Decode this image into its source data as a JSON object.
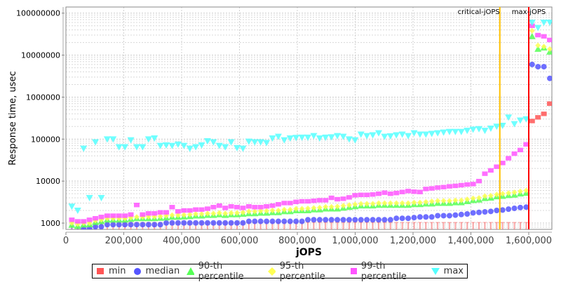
{
  "chart_data": {
    "type": "scatter",
    "title": "",
    "xlabel": "jOPS",
    "ylabel": "Response time, usec",
    "xlim": [
      0,
      1680000
    ],
    "ylim": [
      708,
      140000000
    ],
    "yscale": "log",
    "grid": true,
    "legend_position": "bottom",
    "xticks": [
      "0",
      "200,000",
      "400,000",
      "600,000",
      "800,000",
      "1,000,000",
      "1,200,000",
      "1,400,000",
      "1,600,000"
    ],
    "xtick_values": [
      0,
      200000,
      400000,
      600000,
      800000,
      1000000,
      1200000,
      1400000,
      1600000
    ],
    "yticks": [
      "1000",
      "10000",
      "100000",
      "1000000",
      "10000000",
      "100000000"
    ],
    "ytick_values": [
      1000,
      10000,
      100000,
      1000000,
      10000000,
      100000000
    ],
    "markers": [
      {
        "label": "critical-jOPS",
        "x": 1500000,
        "color": "#ffc000"
      },
      {
        "label": "max-jOPS",
        "x": 1600000,
        "color": "#ff0000"
      }
    ],
    "x": [
      20400,
      40800,
      61200,
      81600,
      102000,
      122400,
      142800,
      163200,
      183600,
      204000,
      224400,
      244800,
      265200,
      285600,
      306000,
      326400,
      346800,
      367200,
      387600,
      408000,
      428400,
      448800,
      469200,
      489600,
      510000,
      530400,
      550800,
      571200,
      591600,
      612000,
      632400,
      652800,
      673200,
      693600,
      714000,
      734400,
      754800,
      775200,
      795600,
      816000,
      836400,
      856800,
      877200,
      897600,
      918000,
      938400,
      958800,
      979200,
      999600,
      1020000,
      1040400,
      1060800,
      1081200,
      1101600,
      1122000,
      1142400,
      1162800,
      1183200,
      1203600,
      1224000,
      1244400,
      1264800,
      1285200,
      1305600,
      1326000,
      1346400,
      1366800,
      1387200,
      1407600,
      1428000,
      1448400,
      1468800,
      1489200,
      1509600,
      1530000,
      1550400,
      1570800,
      1591200,
      1611600,
      1632000,
      1652400,
      1672800
    ],
    "series": [
      {
        "name": "min",
        "color": "#ff5555",
        "marker": "square",
        "values": [
          500,
          500,
          500,
          500,
          500,
          500,
          500,
          500,
          500,
          500,
          500,
          500,
          500,
          500,
          500,
          500,
          500,
          500,
          500,
          500,
          500,
          500,
          500,
          500,
          500,
          500,
          500,
          500,
          500,
          500,
          500,
          500,
          500,
          500,
          500,
          500,
          500,
          500,
          500,
          500,
          500,
          500,
          500,
          500,
          500,
          500,
          500,
          500,
          500,
          500,
          500,
          500,
          500,
          500,
          500,
          500,
          500,
          500,
          500,
          500,
          500,
          500,
          500,
          500,
          500,
          500,
          500,
          500,
          500,
          500,
          500,
          500,
          500,
          500,
          500,
          500,
          500,
          500,
          270000,
          330000,
          400000,
          700000
        ]
      },
      {
        "name": "median",
        "color": "#5555ff",
        "marker": "circle",
        "values": [
          650,
          680,
          730,
          740,
          820,
          820,
          920,
          920,
          920,
          920,
          920,
          920,
          920,
          920,
          920,
          920,
          1010,
          1010,
          1010,
          1010,
          1010,
          1010,
          1010,
          1010,
          1010,
          1010,
          1010,
          1010,
          1010,
          1010,
          1100,
          1100,
          1100,
          1100,
          1100,
          1100,
          1100,
          1100,
          1100,
          1100,
          1200,
          1200,
          1200,
          1200,
          1200,
          1200,
          1200,
          1200,
          1200,
          1200,
          1200,
          1200,
          1200,
          1200,
          1200,
          1300,
          1300,
          1300,
          1350,
          1400,
          1400,
          1400,
          1500,
          1500,
          1500,
          1550,
          1600,
          1650,
          1750,
          1800,
          1850,
          1900,
          2000,
          2050,
          2150,
          2250,
          2350,
          2400,
          6000000,
          5300000,
          5300000,
          2800000
        ]
      },
      {
        "name": "90-th percentile",
        "color": "#55ff55",
        "marker": "triangle",
        "values": [
          900,
          850,
          920,
          930,
          1050,
          1100,
          1200,
          1200,
          1200,
          1200,
          1250,
          1300,
          1300,
          1300,
          1300,
          1320,
          1350,
          1400,
          1400,
          1420,
          1450,
          1500,
          1500,
          1550,
          1550,
          1600,
          1550,
          1600,
          1600,
          1650,
          1700,
          1700,
          1750,
          1750,
          1800,
          1800,
          1900,
          1900,
          2000,
          2000,
          2000,
          2100,
          2100,
          2200,
          2200,
          2200,
          2300,
          2400,
          2500,
          2600,
          2600,
          2600,
          2700,
          2700,
          2700,
          2700,
          2700,
          2700,
          2800,
          2800,
          2900,
          2900,
          3000,
          3000,
          3000,
          3100,
          3100,
          3300,
          3500,
          3600,
          3900,
          4000,
          4300,
          4400,
          4600,
          4700,
          5000,
          5200,
          28000000,
          14000000,
          15000000,
          12000000
        ]
      },
      {
        "name": "95-th percentile",
        "color": "#ffff55",
        "marker": "diamond",
        "values": [
          1000,
          950,
          1000,
          1000,
          1150,
          1200,
          1300,
          1300,
          1300,
          1300,
          1350,
          1400,
          1400,
          1420,
          1420,
          1450,
          1500,
          1550,
          1550,
          1570,
          1600,
          1650,
          1650,
          1700,
          1700,
          1750,
          1700,
          1750,
          1750,
          1800,
          1900,
          1900,
          1950,
          1950,
          2000,
          2000,
          2100,
          2100,
          2200,
          2200,
          2250,
          2300,
          2350,
          2450,
          2450,
          2500,
          2600,
          2700,
          2800,
          2900,
          2900,
          2900,
          3000,
          3000,
          3000,
          3000,
          3000,
          3000,
          3100,
          3100,
          3200,
          3300,
          3400,
          3400,
          3400,
          3500,
          3500,
          3700,
          3900,
          4000,
          4400,
          4500,
          4800,
          5000,
          5200,
          5400,
          5700,
          6000,
          38000000,
          17000000,
          16000000,
          14000000
        ]
      },
      {
        "name": "99-th percentile",
        "color": "#ff55ff",
        "marker": "square",
        "values": [
          1200,
          1100,
          1100,
          1200,
          1300,
          1400,
          1500,
          1500,
          1500,
          1500,
          1600,
          2700,
          1600,
          1700,
          1700,
          1800,
          1800,
          2400,
          1900,
          2000,
          2000,
          2100,
          2100,
          2200,
          2400,
          2600,
          2300,
          2500,
          2400,
          2300,
          2500,
          2400,
          2400,
          2500,
          2600,
          2800,
          3000,
          3000,
          3200,
          3300,
          3300,
          3400,
          3500,
          3500,
          4000,
          3700,
          3800,
          4100,
          4600,
          4700,
          4700,
          4800,
          5000,
          5300,
          5000,
          5200,
          5500,
          5800,
          5600,
          5500,
          6500,
          6700,
          7000,
          7200,
          7500,
          7700,
          8000,
          8300,
          8500,
          10000,
          15000,
          18000,
          22000,
          27000,
          35000,
          45000,
          55000,
          75000,
          50000000,
          30000000,
          28000000,
          23000000
        ]
      },
      {
        "name": "max",
        "color": "#55ffff",
        "marker": "triangle-down",
        "values": [
          2500,
          2000,
          60000,
          4000,
          85000,
          4000,
          100000,
          100000,
          65000,
          65000,
          95000,
          65000,
          65000,
          100000,
          105000,
          70000,
          72000,
          70000,
          75000,
          70000,
          60000,
          65000,
          72000,
          90000,
          85000,
          70000,
          65000,
          85000,
          62000,
          60000,
          88000,
          85000,
          85000,
          82000,
          105000,
          115000,
          95000,
          105000,
          108000,
          110000,
          110000,
          120000,
          105000,
          110000,
          112000,
          120000,
          115000,
          100000,
          95000,
          130000,
          120000,
          125000,
          140000,
          115000,
          118000,
          125000,
          130000,
          120000,
          140000,
          130000,
          130000,
          135000,
          140000,
          145000,
          150000,
          150000,
          150000,
          160000,
          170000,
          175000,
          160000,
          180000,
          200000,
          210000,
          330000,
          230000,
          280000,
          300000,
          60000000,
          45000000,
          60000000,
          60000000
        ]
      }
    ]
  }
}
